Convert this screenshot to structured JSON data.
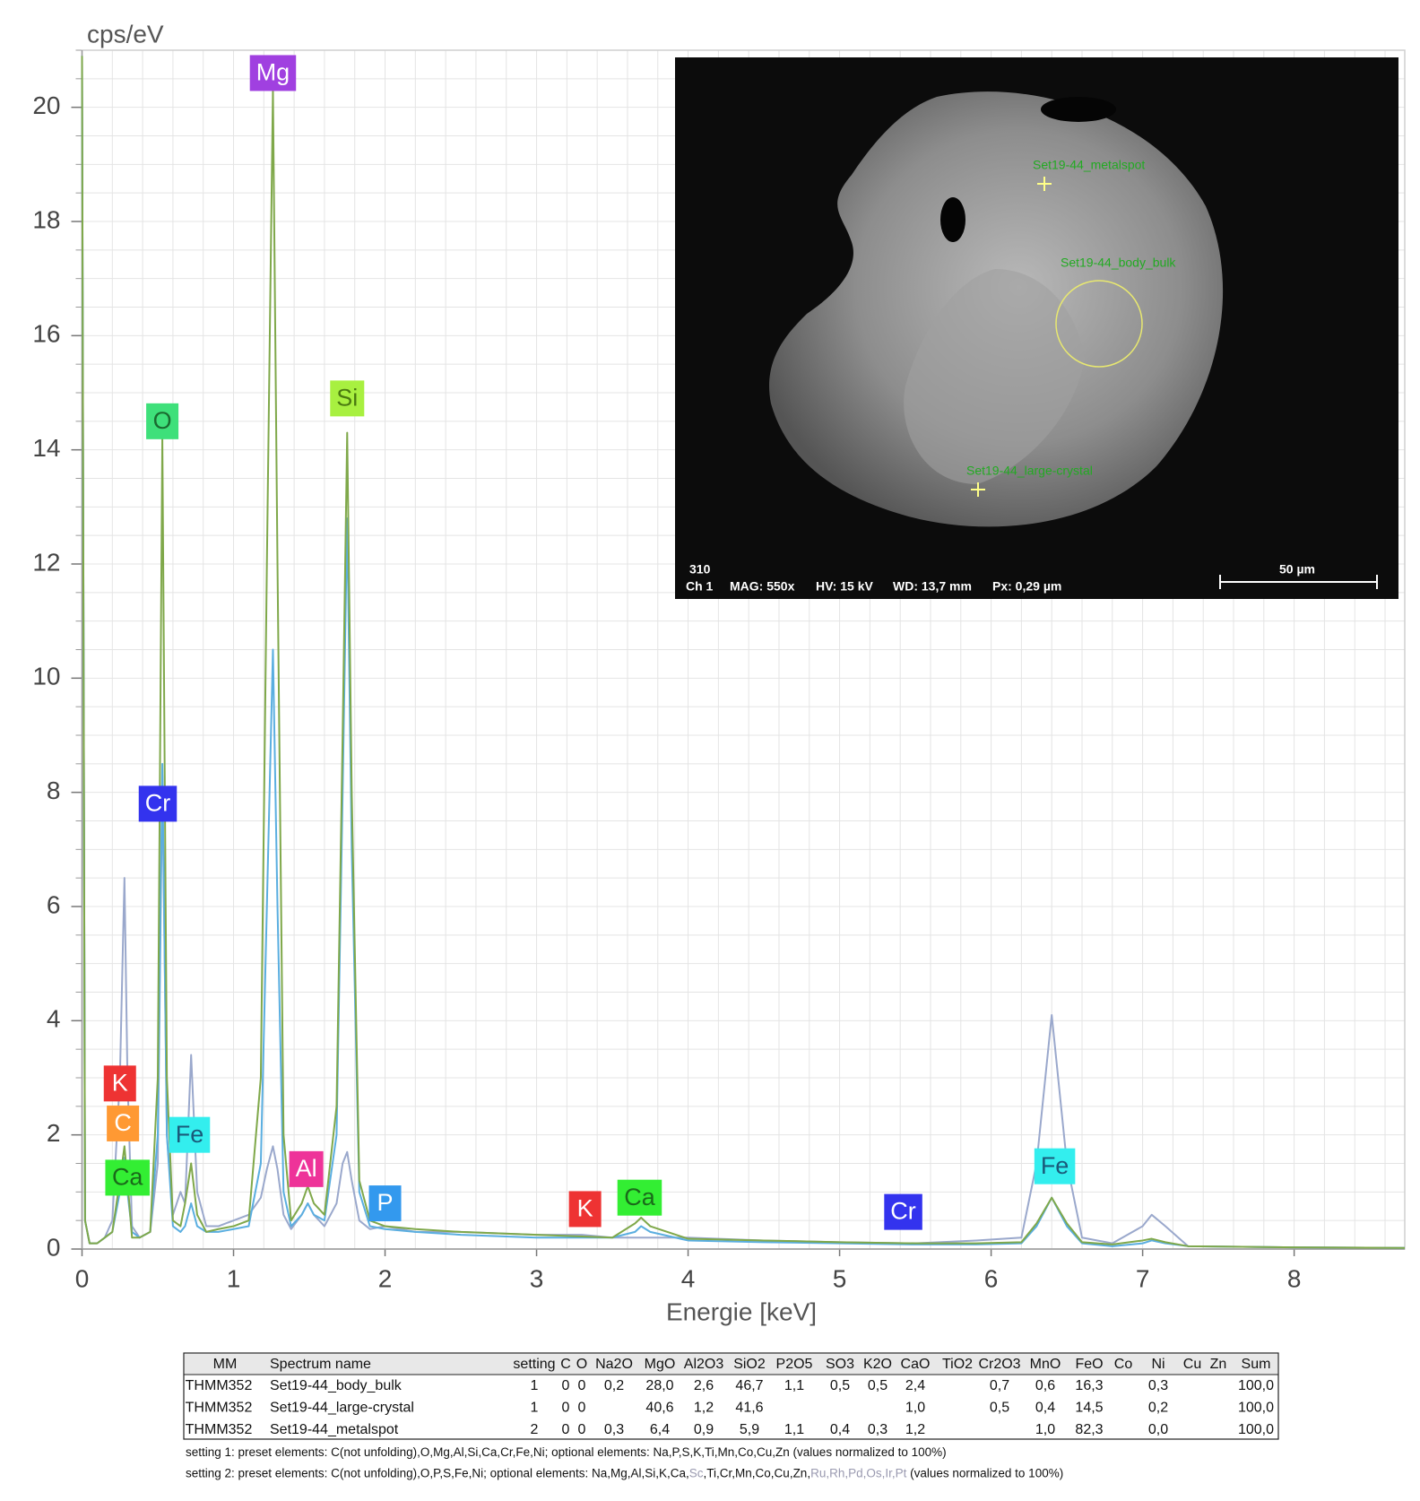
{
  "chart_data": {
    "type": "line",
    "ylabel": "cps/eV",
    "xlabel": "Energie [keV]",
    "xlim": [
      0,
      8.73
    ],
    "ylim": [
      0,
      21
    ],
    "xticks": [
      0,
      1,
      2,
      3,
      4,
      5,
      6,
      7,
      8
    ],
    "yticks": [
      0,
      2,
      4,
      6,
      8,
      10,
      12,
      14,
      16,
      18,
      20
    ],
    "grid": true,
    "minor_grid": {
      "x": 0.2,
      "y": 0.5
    },
    "x": [
      0,
      0.02,
      0.05,
      0.1,
      0.15,
      0.2,
      0.25,
      0.28,
      0.3,
      0.33,
      0.38,
      0.45,
      0.5,
      0.53,
      0.56,
      0.6,
      0.65,
      0.68,
      0.72,
      0.76,
      0.82,
      0.9,
      1.0,
      1.1,
      1.18,
      1.22,
      1.26,
      1.29,
      1.33,
      1.38,
      1.45,
      1.49,
      1.53,
      1.6,
      1.68,
      1.72,
      1.75,
      1.78,
      1.83,
      1.9,
      2.0,
      2.2,
      2.5,
      3.0,
      3.3,
      3.5,
      3.65,
      3.69,
      3.75,
      4.0,
      4.5,
      5.0,
      5.5,
      5.9,
      6.2,
      6.3,
      6.4,
      6.5,
      6.6,
      6.8,
      7.0,
      7.06,
      7.15,
      7.3,
      8.0,
      8.73
    ],
    "series": [
      {
        "color": "#9aa8cc",
        "values": [
          20.9,
          0.5,
          0.1,
          0.1,
          0.2,
          0.5,
          3,
          6.5,
          3,
          0.4,
          0.2,
          0.3,
          1.5,
          8.3,
          2,
          0.6,
          1,
          0.8,
          3.4,
          1,
          0.4,
          0.4,
          0.5,
          0.6,
          0.9,
          1.4,
          1.8,
          1.4,
          0.6,
          0.35,
          0.6,
          0.8,
          0.6,
          0.4,
          0.8,
          1.5,
          1.7,
          1.2,
          0.5,
          0.35,
          0.4,
          0.3,
          0.3,
          0.25,
          0.25,
          0.2,
          0.2,
          0.2,
          0.2,
          0.2,
          0.15,
          0.12,
          0.1,
          0.15,
          0.2,
          1.5,
          4.1,
          1.5,
          0.2,
          0.1,
          0.4,
          0.6,
          0.4,
          0.05,
          0.03,
          0.02
        ]
      },
      {
        "color": "#5aaee0",
        "values": [
          20.9,
          0.5,
          0.1,
          0.1,
          0.2,
          0.3,
          1,
          1.6,
          1,
          0.3,
          0.2,
          0.3,
          2,
          8.5,
          2,
          0.4,
          0.3,
          0.4,
          0.8,
          0.4,
          0.3,
          0.3,
          0.35,
          0.4,
          1.5,
          6,
          10.5,
          6,
          1,
          0.4,
          0.6,
          0.8,
          0.6,
          0.5,
          2,
          8,
          12.8,
          7,
          1,
          0.4,
          0.35,
          0.3,
          0.25,
          0.2,
          0.2,
          0.2,
          0.3,
          0.4,
          0.3,
          0.15,
          0.12,
          0.1,
          0.08,
          0.08,
          0.1,
          0.4,
          0.9,
          0.4,
          0.1,
          0.05,
          0.1,
          0.15,
          0.1,
          0.05,
          0.03,
          0.02
        ]
      },
      {
        "color": "#7fa84a",
        "values": [
          20.9,
          0.5,
          0.1,
          0.1,
          0.2,
          0.3,
          1.2,
          1.8,
          1.2,
          0.2,
          0.2,
          0.3,
          3,
          14.2,
          3,
          0.5,
          0.4,
          0.8,
          1.5,
          0.6,
          0.3,
          0.35,
          0.4,
          0.5,
          3,
          12,
          20.3,
          12,
          2,
          0.5,
          0.8,
          1.1,
          0.8,
          0.6,
          2.5,
          9,
          14.3,
          8,
          1.2,
          0.5,
          0.4,
          0.35,
          0.3,
          0.25,
          0.22,
          0.2,
          0.45,
          0.55,
          0.4,
          0.18,
          0.15,
          0.12,
          0.1,
          0.1,
          0.12,
          0.45,
          0.9,
          0.45,
          0.12,
          0.08,
          0.15,
          0.18,
          0.12,
          0.05,
          0.03,
          0.02
        ]
      }
    ],
    "annotations": [
      {
        "text": "Mg",
        "x": 1.26,
        "y": 20.6,
        "color": "#a040e0",
        "text_color": "#ffffff"
      },
      {
        "text": "O",
        "x": 0.53,
        "y": 14.5,
        "color": "#3ee07a",
        "text_color": "#1a6a30"
      },
      {
        "text": "Si",
        "x": 1.75,
        "y": 14.9,
        "color": "#a8f040",
        "text_color": "#4a7a10"
      },
      {
        "text": "Cr",
        "x": 0.5,
        "y": 7.8,
        "color": "#3333ee",
        "text_color": "#ffffff"
      },
      {
        "text": "K",
        "x": 0.25,
        "y": 2.9,
        "color": "#ee3333",
        "text_color": "#ffffff"
      },
      {
        "text": "C",
        "x": 0.27,
        "y": 2.2,
        "color": "#ff9933",
        "text_color": "#ffffff"
      },
      {
        "text": "Ca",
        "x": 0.3,
        "y": 1.25,
        "color": "#33ee33",
        "text_color": "#1a6a1a"
      },
      {
        "text": "Fe",
        "x": 0.71,
        "y": 2.0,
        "color": "#33eeee",
        "text_color": "#1a5a7a"
      },
      {
        "text": "Al",
        "x": 1.48,
        "y": 1.4,
        "color": "#ee3399",
        "text_color": "#ffffff"
      },
      {
        "text": "P",
        "x": 2.0,
        "y": 0.8,
        "color": "#3399ee",
        "text_color": "#ffffff"
      },
      {
        "text": "K",
        "x": 3.32,
        "y": 0.7,
        "color": "#ee3333",
        "text_color": "#ffffff"
      },
      {
        "text": "Ca",
        "x": 3.68,
        "y": 0.9,
        "color": "#33ee33",
        "text_color": "#1a6a1a"
      },
      {
        "text": "Cr",
        "x": 5.42,
        "y": 0.65,
        "color": "#3333ee",
        "text_color": "#ffffff"
      },
      {
        "text": "Fe",
        "x": 6.42,
        "y": 1.45,
        "color": "#33eeee",
        "text_color": "#1a5a7a"
      }
    ]
  },
  "inset": {
    "spots": [
      "Set19-44_metalspot",
      "Set19-44_body_bulk",
      "Set19-44_large-crystal"
    ],
    "info": [
      "310",
      "Ch 1",
      "MAG: 550x",
      "HV: 15 kV",
      "WD: 13,7 mm",
      "Px: 0,29 µm"
    ],
    "scale": "50 µm"
  },
  "table": {
    "columns": [
      "MM",
      "Spectrum name",
      "setting",
      "C",
      "O",
      "Na2O",
      "MgO",
      "Al2O3",
      "SiO2",
      "P2O5",
      "SO3",
      "K2O",
      "CaO",
      "TiO2",
      "Cr2O3",
      "MnO",
      "FeO",
      "Co",
      "Ni",
      "Cu",
      "Zn",
      "Sum"
    ],
    "rows": [
      [
        "THMM352",
        "Set19-44_body_bulk",
        "1",
        "0",
        "0",
        "0,2",
        "28,0",
        "2,6",
        "46,7",
        "1,1",
        "0,5",
        "0,5",
        "2,4",
        null,
        "0,7",
        "0,6",
        "16,3",
        null,
        "0,3",
        null,
        null,
        "100,0"
      ],
      [
        "THMM352",
        "Set19-44_large-crystal",
        "1",
        "0",
        "0",
        null,
        "40,6",
        "1,2",
        "41,6",
        null,
        null,
        null,
        "1,0",
        null,
        "0,5",
        "0,4",
        "14,5",
        null,
        "0,2",
        null,
        null,
        "100,0"
      ],
      [
        "THMM352",
        "Set19-44_metalspot",
        "2",
        "0",
        "0",
        "0,3",
        "6,4",
        "0,9",
        "5,9",
        "1,1",
        "0,4",
        "0,3",
        "1,2",
        null,
        null,
        "1,0",
        "82,3",
        null,
        "0,0",
        null,
        null,
        "100,0"
      ]
    ],
    "notes": [
      [
        {
          "text": "setting 1: preset elements: C(not unfolding),O,Mg,Al,Si,Ca,Cr,Fe,Ni; optional elements: Na,P,S,K,Ti,Mn,Co,Cu,Zn (values normalized to 100%)"
        }
      ],
      [
        {
          "text": "setting 2: preset elements: C(not unfolding),O,P,S,Fe,Ni; optional elements: Na,Mg,Al,Si,K,Ca,"
        },
        {
          "text": "Sc",
          "color": "#9a9ab0"
        },
        {
          "text": ",Ti,Cr,Mn,Co,Cu,Zn,"
        },
        {
          "text": "Ru,Rh,Pd,Os,Ir,Pt",
          "color": "#9a9ab0"
        },
        {
          "text": " (values normalized to 100%)"
        }
      ]
    ]
  }
}
